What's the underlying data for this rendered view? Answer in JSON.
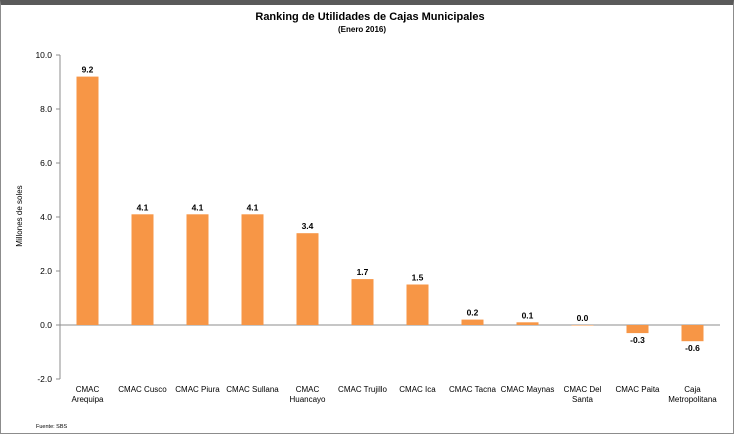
{
  "chart_data": {
    "type": "bar",
    "title": "Ranking de Utilidades de Cajas Municipales",
    "subtitle": "(Enero 2016)",
    "ylabel": "Millones de soles",
    "xlabel": "",
    "ylim": [
      -2.0,
      10.0
    ],
    "yticks": [
      "10.0",
      "8.0",
      "6.0",
      "4.0",
      "2.0",
      "0.0",
      "-2.0"
    ],
    "categories": [
      [
        "CMAC",
        "Arequipa"
      ],
      [
        "CMAC Cusco"
      ],
      [
        "CMAC Piura"
      ],
      [
        "CMAC Sullana"
      ],
      [
        "CMAC",
        "Huancayo"
      ],
      [
        "CMAC Trujillo"
      ],
      [
        "CMAC     Ica"
      ],
      [
        "CMAC Tacna"
      ],
      [
        "CMAC Maynas"
      ],
      [
        "CMAC Del",
        "Santa"
      ],
      [
        "CMAC Paita"
      ],
      [
        "Caja",
        "Metropolitana"
      ]
    ],
    "values": [
      9.2,
      4.1,
      4.1,
      4.1,
      3.4,
      1.7,
      1.5,
      0.2,
      0.1,
      0.0,
      -0.3,
      -0.6
    ],
    "value_labels": [
      "9.2",
      "4.1",
      "4.1",
      "4.1",
      "3.4",
      "1.7",
      "1.5",
      "0.2",
      "0.1",
      "0.0",
      "-0.3",
      "-0.6"
    ],
    "bar_color": "#F79646",
    "grid": false,
    "legend": "none",
    "source": "Fuente: SBS"
  }
}
